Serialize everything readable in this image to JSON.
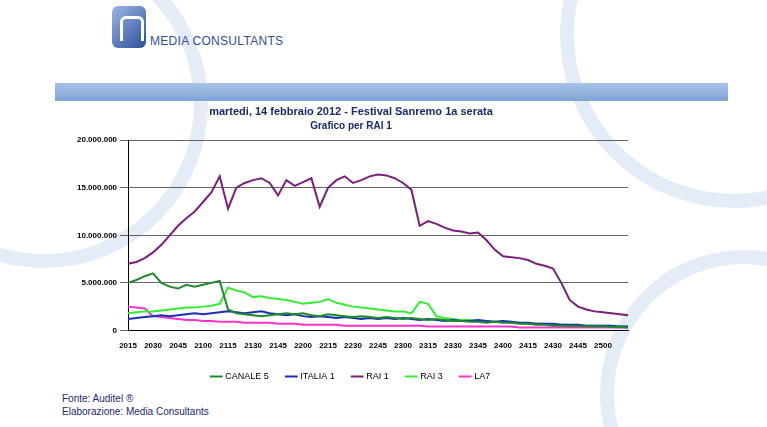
{
  "header": {
    "logo": "MEDIA CONSULTANTS"
  },
  "footer": [
    "Fonte: Auditel ®",
    "Elaborazione: Media Consultants"
  ],
  "chart_data": {
    "type": "line",
    "title": "martedi, 14 febbraio 2012 - Festival Sanremo 1a serata",
    "subtitle": "Grafico per RAI 1",
    "categories": [
      "2015",
      null,
      null,
      "2030",
      null,
      null,
      "2045",
      null,
      null,
      "2100",
      null,
      null,
      "2115",
      null,
      null,
      "2130",
      null,
      null,
      "2145",
      null,
      null,
      "2200",
      null,
      null,
      "2215",
      null,
      null,
      "2230",
      null,
      null,
      "2245",
      null,
      null,
      "2300",
      null,
      null,
      "2315",
      null,
      null,
      "2330",
      null,
      null,
      "2345",
      null,
      null,
      "2400",
      null,
      null,
      "2415",
      null,
      null,
      "2430",
      null,
      null,
      "2445",
      null,
      null,
      "2500",
      null,
      null,
      null
    ],
    "ylim": [
      0,
      20000000
    ],
    "yticks": [
      0,
      {
        "value": 5000000,
        "label": "5.000.000"
      },
      {
        "value": 10000000,
        "label": "10.000.000"
      },
      {
        "value": 15000000,
        "label": "15.000.000"
      },
      {
        "value": 20000000,
        "label": "20.000.000"
      }
    ],
    "grid": true,
    "legend": "bottom",
    "series": [
      {
        "name": "CANALE 5",
        "color": "#1f8a2a",
        "values": [
          5000000,
          5300000,
          5700000,
          6000000,
          5000000,
          4600000,
          4400000,
          4800000,
          4600000,
          4800000,
          5000000,
          5200000,
          2200000,
          1800000,
          1700000,
          1600000,
          1500000,
          1600000,
          1700000,
          1800000,
          1700000,
          1800000,
          1600000,
          1500000,
          1700000,
          1600000,
          1500000,
          1400000,
          1500000,
          1400000,
          1300000,
          1400000,
          1300000,
          1200000,
          1300000,
          1200000,
          1100000,
          1200000,
          1100000,
          1000000,
          1000000,
          900000,
          900000,
          800000,
          900000,
          800000,
          800000,
          700000,
          700000,
          600000,
          600000,
          500000,
          500000,
          450000,
          450000,
          400000,
          400000,
          400000,
          350000,
          350000,
          300000
        ]
      },
      {
        "name": "ITALIA 1",
        "color": "#1a2fb5",
        "values": [
          1200000,
          1300000,
          1400000,
          1500000,
          1600000,
          1500000,
          1600000,
          1700000,
          1800000,
          1700000,
          1800000,
          1900000,
          2000000,
          1900000,
          1800000,
          1900000,
          2000000,
          1800000,
          1700000,
          1600000,
          1700000,
          1500000,
          1400000,
          1500000,
          1400000,
          1300000,
          1400000,
          1300000,
          1200000,
          1300000,
          1200000,
          1300000,
          1200000,
          1300000,
          1200000,
          1100000,
          1200000,
          1100000,
          1000000,
          1100000,
          1000000,
          1000000,
          1100000,
          1000000,
          900000,
          1000000,
          900000,
          800000,
          800000,
          700000,
          700000,
          700000,
          600000,
          600000,
          600000,
          500000,
          500000,
          500000,
          500000,
          400000,
          400000
        ]
      },
      {
        "name": "RAI 1",
        "color": "#7a1f7a",
        "values": [
          7000000,
          7200000,
          7600000,
          8200000,
          9000000,
          10000000,
          11000000,
          11800000,
          12500000,
          13500000,
          14500000,
          16200000,
          12800000,
          15000000,
          15500000,
          15800000,
          16000000,
          15500000,
          14200000,
          15800000,
          15200000,
          15600000,
          16000000,
          13000000,
          15000000,
          15800000,
          16200000,
          15500000,
          15800000,
          16200000,
          16400000,
          16300000,
          16000000,
          15500000,
          14800000,
          11000000,
          11500000,
          11200000,
          10800000,
          10500000,
          10400000,
          10200000,
          10300000,
          9500000,
          8500000,
          7800000,
          7700000,
          7600000,
          7400000,
          7000000,
          6800000,
          6500000,
          5000000,
          3200000,
          2500000,
          2200000,
          2000000,
          1900000,
          1800000,
          1700000,
          1600000
        ]
      },
      {
        "name": "RAI 3",
        "color": "#33ee33",
        "values": [
          1800000,
          1900000,
          2000000,
          2000000,
          2100000,
          2200000,
          2300000,
          2400000,
          2400000,
          2500000,
          2600000,
          2800000,
          4500000,
          4200000,
          4000000,
          3500000,
          3600000,
          3400000,
          3300000,
          3200000,
          3000000,
          2800000,
          2900000,
          3000000,
          3300000,
          2900000,
          2700000,
          2500000,
          2400000,
          2300000,
          2200000,
          2100000,
          2000000,
          2000000,
          1800000,
          3000000,
          2800000,
          1500000,
          1300000,
          1200000,
          1100000,
          1100000,
          1000000,
          1000000,
          900000,
          900000,
          800000,
          800000,
          700000,
          700000,
          700000,
          600000,
          600000,
          600000,
          500000,
          500000,
          500000,
          500000,
          400000,
          400000,
          400000
        ]
      },
      {
        "name": "LA7",
        "color": "#ff33cc",
        "values": [
          2500000,
          2400000,
          2300000,
          1500000,
          1400000,
          1300000,
          1200000,
          1100000,
          1100000,
          1000000,
          1000000,
          900000,
          900000,
          900000,
          800000,
          800000,
          800000,
          800000,
          700000,
          700000,
          700000,
          600000,
          600000,
          600000,
          600000,
          600000,
          500000,
          500000,
          500000,
          500000,
          500000,
          500000,
          500000,
          500000,
          500000,
          500000,
          400000,
          400000,
          400000,
          400000,
          400000,
          400000,
          400000,
          400000,
          400000,
          400000,
          400000,
          300000,
          300000,
          300000,
          300000,
          300000,
          300000,
          300000,
          300000,
          300000,
          300000,
          300000,
          300000,
          300000,
          300000
        ]
      }
    ]
  }
}
